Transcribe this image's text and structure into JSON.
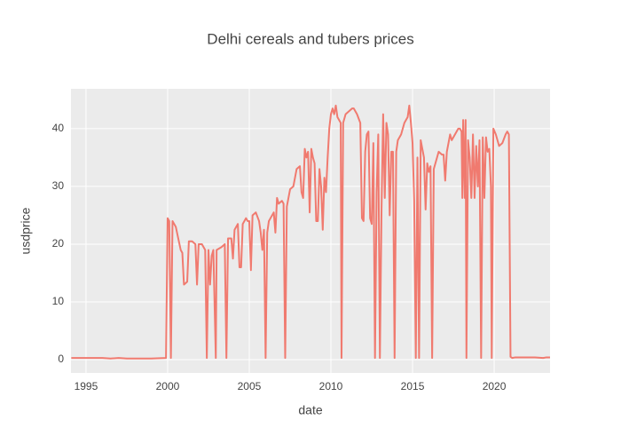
{
  "chart_data": {
    "type": "line",
    "title": "Delhi cereals and tubers prices",
    "x_label": "date",
    "y_label": "usdprice",
    "x": [
      1994.1,
      1995,
      1996,
      1996.5,
      1997,
      1997.5,
      1998,
      1999,
      1999.9,
      2000.0,
      2000.1,
      2000.2,
      2000.3,
      2000.5,
      2000.8,
      2000.9,
      2001.0,
      2001.2,
      2001.3,
      2001.5,
      2001.7,
      2001.8,
      2001.9,
      2002.1,
      2002.3,
      2002.4,
      2002.5,
      2002.6,
      2002.7,
      2002.8,
      2002.95,
      2003.0,
      2003.3,
      2003.5,
      2003.6,
      2003.7,
      2003.9,
      2004.0,
      2004.1,
      2004.3,
      2004.4,
      2004.5,
      2004.6,
      2004.8,
      2004.9,
      2005.0,
      2005.1,
      2005.2,
      2005.4,
      2005.6,
      2005.7,
      2005.8,
      2005.9,
      2006.0,
      2006.1,
      2006.2,
      2006.4,
      2006.5,
      2006.6,
      2006.7,
      2006.8,
      2007.0,
      2007.1,
      2007.2,
      2007.3,
      2007.5,
      2007.7,
      2007.9,
      2008.1,
      2008.2,
      2008.3,
      2008.4,
      2008.5,
      2008.6,
      2008.7,
      2008.8,
      2008.9,
      2009.0,
      2009.1,
      2009.2,
      2009.3,
      2009.4,
      2009.5,
      2009.6,
      2009.7,
      2009.8,
      2009.9,
      2010.0,
      2010.1,
      2010.2,
      2010.3,
      2010.4,
      2010.6,
      2010.65,
      2010.75,
      2010.9,
      2011.1,
      2011.3,
      2011.4,
      2011.5,
      2011.6,
      2011.8,
      2011.9,
      2012.0,
      2012.1,
      2012.2,
      2012.3,
      2012.4,
      2012.5,
      2012.6,
      2012.7,
      2012.8,
      2012.9,
      2013.0,
      2013.1,
      2013.2,
      2013.3,
      2013.4,
      2013.5,
      2013.6,
      2013.7,
      2013.8,
      2013.9,
      2014.0,
      2014.1,
      2014.3,
      2014.5,
      2014.7,
      2014.8,
      2014.9,
      2015.0,
      2015.1,
      2015.2,
      2015.3,
      2015.4,
      2015.5,
      2015.6,
      2015.7,
      2015.8,
      2015.9,
      2016.0,
      2016.1,
      2016.2,
      2016.3,
      2016.5,
      2016.6,
      2016.8,
      2016.9,
      2017.0,
      2017.1,
      2017.3,
      2017.4,
      2017.6,
      2017.8,
      2017.9,
      2018.0,
      2018.05,
      2018.1,
      2018.2,
      2018.25,
      2018.3,
      2018.4,
      2018.5,
      2018.6,
      2018.7,
      2018.8,
      2018.9,
      2019.0,
      2019.1,
      2019.2,
      2019.3,
      2019.4,
      2019.5,
      2019.6,
      2019.7,
      2019.8,
      2019.85,
      2019.95,
      2020.1,
      2020.3,
      2020.5,
      2020.7,
      2020.8,
      2020.9,
      2021.0,
      2021.1,
      2021.3,
      2022,
      2022.5,
      2023,
      2023.2,
      2023.42
    ],
    "values": [
      0.3,
      0.3,
      0.3,
      0.2,
      0.3,
      0.2,
      0.2,
      0.2,
      0.3,
      24.5,
      24,
      0.3,
      24,
      23,
      19,
      18.5,
      13,
      13.5,
      20.5,
      20.5,
      20,
      13,
      20,
      20,
      19,
      0.3,
      19,
      13,
      18,
      19,
      0.3,
      19,
      19.5,
      20,
      0.3,
      21,
      21,
      17.5,
      22.5,
      23.5,
      16,
      16,
      23.5,
      24.5,
      24,
      24,
      15.5,
      25,
      25.5,
      24,
      22,
      19,
      22.5,
      0.3,
      22,
      24,
      25,
      25.5,
      22,
      28,
      27,
      27.5,
      27,
      0.3,
      26.5,
      29.5,
      30,
      33,
      33.5,
      29,
      28,
      36.5,
      35,
      36,
      25.5,
      36.5,
      35,
      34,
      24,
      24,
      33,
      30,
      22.5,
      31.5,
      29,
      35,
      40,
      42.5,
      43.5,
      42.5,
      44,
      42,
      41,
      0.3,
      41,
      42.5,
      43,
      43.5,
      43.5,
      43,
      42.5,
      41,
      24.5,
      24,
      36,
      39,
      39.5,
      24.5,
      23.5,
      37.5,
      0.3,
      29,
      39,
      0.3,
      26,
      42.5,
      28,
      41,
      39,
      25,
      36,
      36,
      0.3,
      36,
      38,
      39,
      41,
      42,
      44,
      41,
      37.5,
      27.5,
      0.3,
      35,
      0.3,
      38,
      36.5,
      35,
      26,
      34,
      32.5,
      33.5,
      0.3,
      33,
      35,
      36,
      35.5,
      35.5,
      31,
      36,
      39,
      38,
      39,
      40,
      40,
      39.5,
      28,
      41.5,
      28,
      41.5,
      0.3,
      38,
      35,
      28,
      39,
      28,
      37,
      30,
      38,
      0.3,
      38.5,
      28,
      38.5,
      36,
      36.5,
      30,
      0.3,
      40,
      39,
      37,
      37.5,
      39,
      39.5,
      39,
      0.5,
      0.3,
      0.4,
      0.4,
      0.4,
      0.3,
      0.4,
      0.4
    ],
    "color": "#f07a6f",
    "xlim": [
      1994.08,
      2023.42
    ],
    "xticks": [
      1995,
      2000,
      2005,
      2010,
      2015,
      2020
    ],
    "ylim": [
      -2.3,
      46.9
    ],
    "yticks": [
      0,
      10,
      20,
      30,
      40
    ],
    "grid": true
  }
}
